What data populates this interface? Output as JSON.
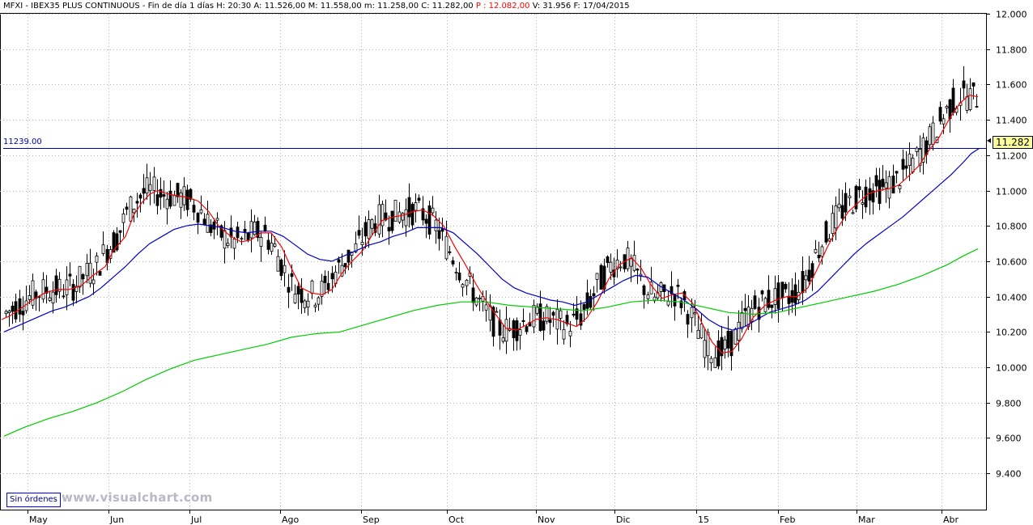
{
  "header": {
    "prefix": "MFXI - IBEX35 PLUS CONTINUOUS - Fin de día 1 días  H: 20:30  A: 11.526,00  M: 11.558,00  m: 11.258,00  C: 11.282,00",
    "red_part": "P : 12.082,00",
    "suffix": "V: 31.956  F: 17/04/2015"
  },
  "orders_button": "Sin órdenes",
  "watermark": "www.visualchart.com",
  "horizontal_level": {
    "label": "11239.00",
    "value": 11239
  },
  "last_price": {
    "label": "11.282",
    "value": 11282
  },
  "colors": {
    "candle": "#000000",
    "grid": "#b0b0b0",
    "ma_short": "#ff0000",
    "ma_medium": "#0000cc",
    "ma_long": "#00cc00",
    "level_line": "#0000aa"
  },
  "chart_data": {
    "type": "candlestick",
    "title": "MFXI - IBEX35 PLUS CONTINUOUS",
    "y_ticks": [
      "9.400",
      "9.600",
      "9.800",
      "10.000",
      "10.200",
      "10.400",
      "10.600",
      "10.800",
      "11.000",
      "11.200",
      "11.400",
      "11.600",
      "11.800",
      "12.000"
    ],
    "x_months": [
      "May",
      "Jun",
      "Jul",
      "Ago",
      "Sep",
      "Oct",
      "Nov",
      "Dic",
      "15",
      "Feb",
      "Mar",
      "Abr"
    ],
    "ylim": [
      9250,
      12000
    ],
    "grid": true,
    "series": [
      {
        "name": "",
        "color_key": "ma_short",
        "points": [
          [
            2,
            10270
          ],
          [
            12,
            10290
          ],
          [
            25,
            10330
          ],
          [
            40,
            10380
          ],
          [
            55,
            10420
          ],
          [
            70,
            10440
          ],
          [
            85,
            10440
          ],
          [
            100,
            10460
          ],
          [
            115,
            10520
          ],
          [
            130,
            10570
          ],
          [
            140,
            10660
          ],
          [
            155,
            10740
          ],
          [
            165,
            10860
          ],
          [
            175,
            10930
          ],
          [
            185,
            10980
          ],
          [
            195,
            11000
          ],
          [
            208,
            10980
          ],
          [
            220,
            10970
          ],
          [
            232,
            10960
          ],
          [
            245,
            10940
          ],
          [
            258,
            10880
          ],
          [
            270,
            10800
          ],
          [
            285,
            10740
          ],
          [
            298,
            10710
          ],
          [
            310,
            10720
          ],
          [
            322,
            10760
          ],
          [
            335,
            10760
          ],
          [
            348,
            10680
          ],
          [
            360,
            10560
          ],
          [
            372,
            10450
          ],
          [
            385,
            10420
          ],
          [
            398,
            10410
          ],
          [
            410,
            10440
          ],
          [
            422,
            10530
          ],
          [
            435,
            10600
          ],
          [
            448,
            10660
          ],
          [
            460,
            10750
          ],
          [
            472,
            10830
          ],
          [
            485,
            10850
          ],
          [
            498,
            10860
          ],
          [
            510,
            10880
          ],
          [
            522,
            10890
          ],
          [
            535,
            10860
          ],
          [
            548,
            10800
          ],
          [
            562,
            10680
          ],
          [
            575,
            10580
          ],
          [
            588,
            10470
          ],
          [
            600,
            10380
          ],
          [
            612,
            10300
          ],
          [
            625,
            10220
          ],
          [
            638,
            10210
          ],
          [
            650,
            10240
          ],
          [
            662,
            10270
          ],
          [
            675,
            10280
          ],
          [
            688,
            10270
          ],
          [
            700,
            10250
          ],
          [
            712,
            10230
          ],
          [
            725,
            10280
          ],
          [
            738,
            10370
          ],
          [
            752,
            10500
          ],
          [
            765,
            10580
          ],
          [
            780,
            10620
          ],
          [
            792,
            10560
          ],
          [
            805,
            10460
          ],
          [
            818,
            10390
          ],
          [
            830,
            10410
          ],
          [
            843,
            10420
          ],
          [
            856,
            10360
          ],
          [
            868,
            10240
          ],
          [
            880,
            10140
          ],
          [
            892,
            10080
          ],
          [
            904,
            10090
          ],
          [
            916,
            10160
          ],
          [
            930,
            10280
          ],
          [
            945,
            10350
          ],
          [
            958,
            10380
          ],
          [
            972,
            10400
          ],
          [
            985,
            10400
          ],
          [
            998,
            10450
          ],
          [
            1010,
            10560
          ],
          [
            1022,
            10680
          ],
          [
            1035,
            10790
          ],
          [
            1048,
            10880
          ],
          [
            1060,
            10930
          ],
          [
            1072,
            10980
          ],
          [
            1085,
            11000
          ],
          [
            1098,
            11010
          ],
          [
            1110,
            11030
          ],
          [
            1122,
            11080
          ],
          [
            1135,
            11140
          ],
          [
            1148,
            11230
          ],
          [
            1160,
            11300
          ],
          [
            1172,
            11400
          ],
          [
            1185,
            11490
          ],
          [
            1197,
            11540
          ],
          [
            1208,
            11530
          ]
        ]
      },
      {
        "name": "",
        "color_key": "ma_medium",
        "points": [
          [
            5,
            10200
          ],
          [
            20,
            10230
          ],
          [
            35,
            10260
          ],
          [
            50,
            10290
          ],
          [
            65,
            10320
          ],
          [
            80,
            10340
          ],
          [
            95,
            10370
          ],
          [
            110,
            10400
          ],
          [
            125,
            10450
          ],
          [
            140,
            10510
          ],
          [
            155,
            10570
          ],
          [
            170,
            10640
          ],
          [
            185,
            10700
          ],
          [
            200,
            10740
          ],
          [
            215,
            10780
          ],
          [
            230,
            10800
          ],
          [
            245,
            10810
          ],
          [
            260,
            10800
          ],
          [
            275,
            10790
          ],
          [
            290,
            10770
          ],
          [
            305,
            10760
          ],
          [
            320,
            10770
          ],
          [
            335,
            10770
          ],
          [
            350,
            10740
          ],
          [
            365,
            10690
          ],
          [
            380,
            10640
          ],
          [
            395,
            10610
          ],
          [
            410,
            10600
          ],
          [
            425,
            10630
          ],
          [
            440,
            10660
          ],
          [
            455,
            10690
          ],
          [
            470,
            10710
          ],
          [
            485,
            10740
          ],
          [
            500,
            10760
          ],
          [
            515,
            10790
          ],
          [
            530,
            10790
          ],
          [
            545,
            10790
          ],
          [
            560,
            10760
          ],
          [
            575,
            10700
          ],
          [
            590,
            10640
          ],
          [
            605,
            10570
          ],
          [
            620,
            10500
          ],
          [
            635,
            10450
          ],
          [
            650,
            10420
          ],
          [
            665,
            10400
          ],
          [
            680,
            10380
          ],
          [
            695,
            10370
          ],
          [
            710,
            10350
          ],
          [
            725,
            10370
          ],
          [
            740,
            10410
          ],
          [
            755,
            10450
          ],
          [
            770,
            10490
          ],
          [
            785,
            10520
          ],
          [
            800,
            10510
          ],
          [
            815,
            10460
          ],
          [
            830,
            10420
          ],
          [
            845,
            10380
          ],
          [
            860,
            10330
          ],
          [
            875,
            10270
          ],
          [
            890,
            10230
          ],
          [
            905,
            10210
          ],
          [
            920,
            10230
          ],
          [
            935,
            10270
          ],
          [
            950,
            10310
          ],
          [
            965,
            10330
          ],
          [
            980,
            10350
          ],
          [
            995,
            10380
          ],
          [
            1010,
            10430
          ],
          [
            1025,
            10500
          ],
          [
            1040,
            10570
          ],
          [
            1055,
            10640
          ],
          [
            1070,
            10700
          ],
          [
            1085,
            10750
          ],
          [
            1100,
            10800
          ],
          [
            1115,
            10850
          ],
          [
            1130,
            10910
          ],
          [
            1145,
            10970
          ],
          [
            1160,
            11030
          ],
          [
            1175,
            11090
          ],
          [
            1190,
            11160
          ],
          [
            1200,
            11210
          ],
          [
            1210,
            11240
          ]
        ]
      },
      {
        "name": "",
        "color_key": "ma_long",
        "points": [
          [
            5,
            9610
          ],
          [
            30,
            9660
          ],
          [
            60,
            9710
          ],
          [
            90,
            9750
          ],
          [
            120,
            9800
          ],
          [
            150,
            9860
          ],
          [
            180,
            9930
          ],
          [
            210,
            9990
          ],
          [
            240,
            10040
          ],
          [
            270,
            10070
          ],
          [
            300,
            10100
          ],
          [
            330,
            10130
          ],
          [
            360,
            10170
          ],
          [
            390,
            10190
          ],
          [
            420,
            10200
          ],
          [
            450,
            10240
          ],
          [
            480,
            10280
          ],
          [
            510,
            10320
          ],
          [
            540,
            10350
          ],
          [
            570,
            10370
          ],
          [
            600,
            10370
          ],
          [
            630,
            10350
          ],
          [
            660,
            10340
          ],
          [
            690,
            10330
          ],
          [
            720,
            10320
          ],
          [
            750,
            10340
          ],
          [
            780,
            10370
          ],
          [
            810,
            10380
          ],
          [
            840,
            10370
          ],
          [
            870,
            10340
          ],
          [
            900,
            10310
          ],
          [
            930,
            10300
          ],
          [
            960,
            10310
          ],
          [
            990,
            10340
          ],
          [
            1020,
            10370
          ],
          [
            1050,
            10400
          ],
          [
            1080,
            10430
          ],
          [
            1110,
            10470
          ],
          [
            1140,
            10520
          ],
          [
            1170,
            10580
          ],
          [
            1190,
            10630
          ],
          [
            1208,
            10670
          ]
        ]
      }
    ]
  }
}
